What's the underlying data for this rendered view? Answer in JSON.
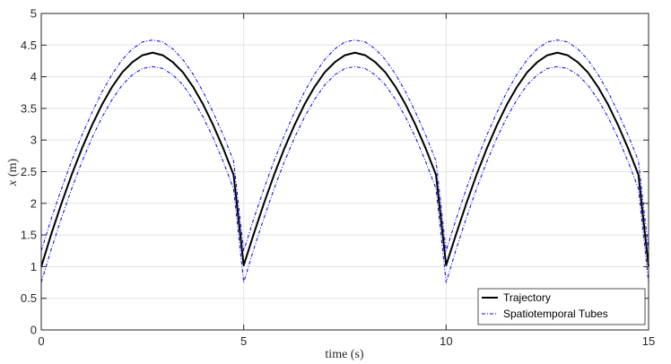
{
  "chart_data": {
    "type": "line",
    "title": "",
    "xlabel": "time (s)",
    "ylabel_var": "x",
    "ylabel_unit": "(m)",
    "xlim": [
      0,
      15
    ],
    "ylim": [
      0,
      5
    ],
    "xticks": [
      0,
      5,
      10,
      15
    ],
    "yticks": [
      0,
      0.5,
      1,
      1.5,
      2,
      2.5,
      3,
      3.5,
      4,
      4.5,
      5
    ],
    "grid": true,
    "legend_position": "bottom-right",
    "series": [
      {
        "name": "Trajectory",
        "color": "#000000",
        "style": "solid",
        "x": [
          0,
          0.25,
          0.5,
          0.75,
          1,
          1.25,
          1.5,
          1.75,
          2,
          2.25,
          2.5,
          2.75,
          3,
          3.25,
          3.5,
          3.75,
          4,
          4.25,
          4.5,
          4.75,
          5,
          5.25,
          5.5,
          5.75,
          6,
          6.25,
          6.5,
          6.75,
          7,
          7.25,
          7.5,
          7.75,
          8,
          8.25,
          8.5,
          8.75,
          9,
          9.25,
          9.5,
          9.75,
          10,
          10.25,
          10.5,
          10.75,
          11,
          11.25,
          11.5,
          11.75,
          12,
          12.25,
          12.5,
          12.75,
          13,
          13.25,
          13.5,
          13.75,
          14,
          14.25,
          14.5,
          14.75,
          15
        ],
        "y": [
          1.0,
          1.52,
          2.0,
          2.45,
          2.86,
          3.23,
          3.56,
          3.84,
          4.07,
          4.23,
          4.34,
          4.38,
          4.34,
          4.23,
          4.07,
          3.84,
          3.56,
          3.23,
          2.86,
          2.45,
          1.02,
          1.52,
          2.0,
          2.45,
          2.86,
          3.23,
          3.56,
          3.84,
          4.07,
          4.23,
          4.34,
          4.38,
          4.34,
          4.23,
          4.07,
          3.84,
          3.56,
          3.23,
          2.86,
          2.45,
          1.02,
          1.52,
          2.0,
          2.45,
          2.86,
          3.23,
          3.56,
          3.84,
          4.07,
          4.23,
          4.34,
          4.38,
          4.34,
          4.23,
          4.07,
          3.84,
          3.56,
          3.23,
          2.86,
          2.45,
          1.0
        ]
      },
      {
        "name": "Spatiotemporal Tubes",
        "color": "#0000ff",
        "style": "dashdot",
        "x": [
          0,
          0.25,
          0.5,
          0.75,
          1,
          1.25,
          1.5,
          1.75,
          2,
          2.25,
          2.5,
          2.75,
          3,
          3.25,
          3.5,
          3.75,
          4,
          4.25,
          4.5,
          4.75,
          5,
          5.25,
          5.5,
          5.75,
          6,
          6.25,
          6.5,
          6.75,
          7,
          7.25,
          7.5,
          7.75,
          8,
          8.25,
          8.5,
          8.75,
          9,
          9.25,
          9.5,
          9.75,
          10,
          10.25,
          10.5,
          10.75,
          11,
          11.25,
          11.5,
          11.75,
          12,
          12.25,
          12.5,
          12.75,
          13,
          13.25,
          13.5,
          13.75,
          14,
          14.25,
          14.5,
          14.75,
          15
        ],
        "y": [
          1.25,
          1.76,
          2.23,
          2.67,
          3.07,
          3.43,
          3.76,
          4.04,
          4.27,
          4.44,
          4.55,
          4.58,
          4.55,
          4.44,
          4.27,
          4.04,
          3.76,
          3.43,
          3.07,
          2.67,
          1.25,
          1.76,
          2.23,
          2.67,
          3.07,
          3.43,
          3.76,
          4.04,
          4.27,
          4.44,
          4.55,
          4.58,
          4.55,
          4.44,
          4.27,
          4.04,
          3.76,
          3.43,
          3.07,
          2.67,
          1.25,
          1.76,
          2.23,
          2.67,
          3.07,
          3.43,
          3.76,
          4.04,
          4.27,
          4.44,
          4.55,
          4.58,
          4.55,
          4.44,
          4.27,
          4.04,
          3.76,
          3.43,
          3.07,
          2.67,
          1.25
        ]
      },
      {
        "name": "",
        "color": "#0000ff",
        "style": "dashdot",
        "x": [
          0,
          0.25,
          0.5,
          0.75,
          1,
          1.25,
          1.5,
          1.75,
          2,
          2.25,
          2.5,
          2.75,
          3,
          3.25,
          3.5,
          3.75,
          4,
          4.25,
          4.5,
          4.75,
          5,
          5.25,
          5.5,
          5.75,
          6,
          6.25,
          6.5,
          6.75,
          7,
          7.25,
          7.5,
          7.75,
          8,
          8.25,
          8.5,
          8.75,
          9,
          9.25,
          9.5,
          9.75,
          10,
          10.25,
          10.5,
          10.75,
          11,
          11.25,
          11.5,
          11.75,
          12,
          12.25,
          12.5,
          12.75,
          13,
          13.25,
          13.5,
          13.75,
          14,
          14.25,
          14.5,
          14.75,
          15
        ],
        "y": [
          0.75,
          1.28,
          1.77,
          2.23,
          2.65,
          3.03,
          3.36,
          3.64,
          3.87,
          4.03,
          4.13,
          4.16,
          4.13,
          4.03,
          3.87,
          3.64,
          3.36,
          3.03,
          2.65,
          2.23,
          0.75,
          1.28,
          1.77,
          2.23,
          2.65,
          3.03,
          3.36,
          3.64,
          3.87,
          4.03,
          4.13,
          4.16,
          4.13,
          4.03,
          3.87,
          3.64,
          3.36,
          3.03,
          2.65,
          2.23,
          0.75,
          1.28,
          1.77,
          2.23,
          2.65,
          3.03,
          3.36,
          3.64,
          3.87,
          4.03,
          4.13,
          4.16,
          4.13,
          4.03,
          3.87,
          3.64,
          3.36,
          3.03,
          2.65,
          2.23,
          0.75
        ]
      }
    ]
  }
}
